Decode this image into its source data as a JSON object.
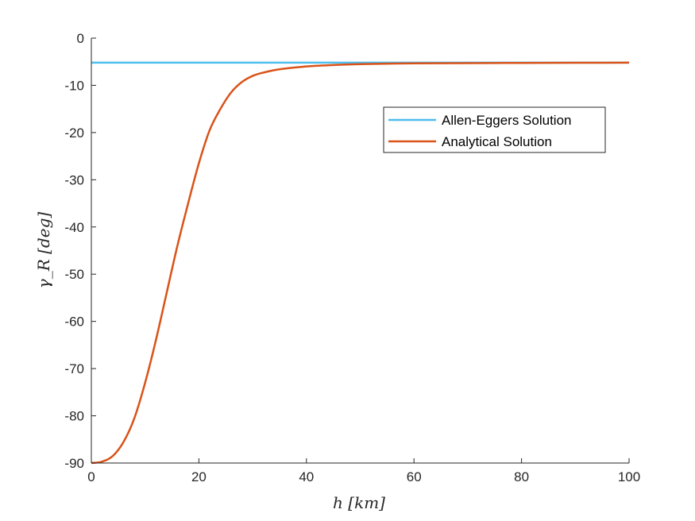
{
  "chart_data": {
    "type": "line",
    "title": "",
    "xlabel": "h [km]",
    "ylabel": "γ_R [deg]",
    "xlim": [
      0,
      100
    ],
    "ylim": [
      -90,
      0
    ],
    "xticks": [
      0,
      20,
      40,
      60,
      80,
      100
    ],
    "yticks": [
      0,
      -10,
      -20,
      -30,
      -40,
      -50,
      -60,
      -70,
      -80,
      -90
    ],
    "grid": false,
    "legend_position": "top-right",
    "series": [
      {
        "name": "Allen-Eggers Solution",
        "color": "#4DBEEE",
        "x": [
          0,
          100
        ],
        "y": [
          -5.2,
          -5.2
        ]
      },
      {
        "name": "Analytical Solution",
        "color": "#D95319",
        "x": [
          0,
          2,
          4,
          6,
          8,
          10,
          12,
          14,
          16,
          18,
          20,
          22,
          24,
          26,
          28,
          30,
          32,
          35,
          40,
          45,
          50,
          60,
          70,
          80,
          90,
          100
        ],
        "y": [
          -90,
          -89.7,
          -88.5,
          -85.5,
          -80.5,
          -73,
          -64,
          -54,
          -44,
          -35,
          -26.5,
          -19.5,
          -15,
          -11.5,
          -9.3,
          -8,
          -7.3,
          -6.6,
          -6.0,
          -5.7,
          -5.5,
          -5.35,
          -5.3,
          -5.25,
          -5.22,
          -5.2
        ]
      }
    ]
  }
}
